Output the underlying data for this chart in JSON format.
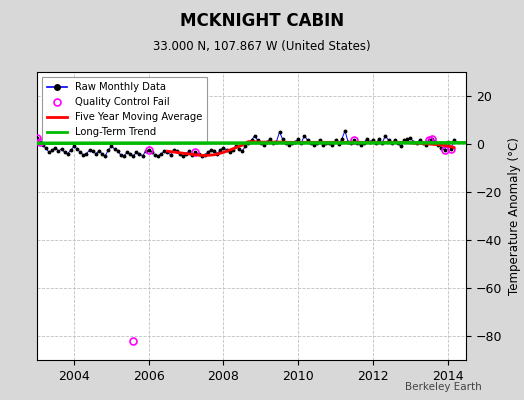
{
  "title": "MCKNIGHT CABIN",
  "subtitle": "33.000 N, 107.867 W (United States)",
  "ylabel": "Temperature Anomaly (°C)",
  "attribution": "Berkeley Earth",
  "xlim": [
    2003.0,
    2014.5
  ],
  "ylim": [
    -90,
    30
  ],
  "yticks": [
    -80,
    -60,
    -40,
    -20,
    0,
    20
  ],
  "xticks": [
    2004,
    2006,
    2008,
    2010,
    2012,
    2014
  ],
  "background_color": "#d8d8d8",
  "plot_bg_color": "#ffffff",
  "grid_color": "#c0c0c0",
  "raw_color": "#0000ff",
  "raw_marker_color": "#000000",
  "moving_avg_color": "#ff0000",
  "trend_color": "#00bb00",
  "qc_fail_color": "#ff00ff",
  "raw_monthly": [
    [
      2003.0,
      2.5
    ],
    [
      2003.083,
      1.0
    ],
    [
      2003.167,
      -0.5
    ],
    [
      2003.25,
      -1.8
    ],
    [
      2003.333,
      -3.5
    ],
    [
      2003.417,
      -2.5
    ],
    [
      2003.5,
      -1.5
    ],
    [
      2003.583,
      -3.0
    ],
    [
      2003.667,
      -2.0
    ],
    [
      2003.75,
      -3.5
    ],
    [
      2003.833,
      -4.0
    ],
    [
      2003.917,
      -2.5
    ],
    [
      2004.0,
      -1.0
    ],
    [
      2004.083,
      -2.0
    ],
    [
      2004.167,
      -3.5
    ],
    [
      2004.25,
      -4.5
    ],
    [
      2004.333,
      -4.0
    ],
    [
      2004.417,
      -2.5
    ],
    [
      2004.5,
      -3.0
    ],
    [
      2004.583,
      -4.0
    ],
    [
      2004.667,
      -3.0
    ],
    [
      2004.75,
      -4.0
    ],
    [
      2004.833,
      -5.0
    ],
    [
      2004.917,
      -2.5
    ],
    [
      2005.0,
      -1.0
    ],
    [
      2005.083,
      -2.0
    ],
    [
      2005.167,
      -3.0
    ],
    [
      2005.25,
      -4.5
    ],
    [
      2005.333,
      -5.0
    ],
    [
      2005.417,
      -3.5
    ],
    [
      2005.5,
      -4.0
    ],
    [
      2005.583,
      -5.0
    ],
    [
      2005.667,
      -3.5
    ],
    [
      2005.75,
      -4.0
    ],
    [
      2005.833,
      -5.0
    ],
    [
      2005.917,
      -3.0
    ],
    [
      2006.0,
      -2.5
    ],
    [
      2006.083,
      -3.5
    ],
    [
      2006.167,
      -4.5
    ],
    [
      2006.25,
      -5.0
    ],
    [
      2006.333,
      -4.0
    ],
    [
      2006.417,
      -3.0
    ],
    [
      2006.5,
      -3.5
    ],
    [
      2006.583,
      -4.5
    ],
    [
      2006.667,
      -2.5
    ],
    [
      2006.75,
      -3.0
    ],
    [
      2006.833,
      -4.0
    ],
    [
      2006.917,
      -5.0
    ],
    [
      2007.0,
      -4.0
    ],
    [
      2007.083,
      -3.0
    ],
    [
      2007.167,
      -4.5
    ],
    [
      2007.25,
      -3.5
    ],
    [
      2007.333,
      -4.0
    ],
    [
      2007.417,
      -5.0
    ],
    [
      2007.5,
      -4.5
    ],
    [
      2007.583,
      -3.5
    ],
    [
      2007.667,
      -2.5
    ],
    [
      2007.75,
      -3.0
    ],
    [
      2007.833,
      -4.0
    ],
    [
      2007.917,
      -2.5
    ],
    [
      2008.0,
      -1.5
    ],
    [
      2008.083,
      -2.5
    ],
    [
      2008.167,
      -3.5
    ],
    [
      2008.25,
      -2.5
    ],
    [
      2008.333,
      -1.0
    ],
    [
      2008.417,
      -2.0
    ],
    [
      2008.5,
      -3.0
    ],
    [
      2008.583,
      -1.0
    ],
    [
      2008.667,
      0.5
    ],
    [
      2008.75,
      1.5
    ],
    [
      2008.833,
      3.5
    ],
    [
      2008.917,
      1.5
    ],
    [
      2009.0,
      0.5
    ],
    [
      2009.083,
      -0.5
    ],
    [
      2009.167,
      1.0
    ],
    [
      2009.25,
      2.0
    ],
    [
      2009.333,
      0.5
    ],
    [
      2009.417,
      1.0
    ],
    [
      2009.5,
      5.0
    ],
    [
      2009.583,
      2.0
    ],
    [
      2009.667,
      0.5
    ],
    [
      2009.75,
      -0.5
    ],
    [
      2009.833,
      0.5
    ],
    [
      2009.917,
      1.0
    ],
    [
      2010.0,
      2.0
    ],
    [
      2010.083,
      0.5
    ],
    [
      2010.167,
      3.5
    ],
    [
      2010.25,
      1.5
    ],
    [
      2010.333,
      0.5
    ],
    [
      2010.417,
      -0.5
    ],
    [
      2010.5,
      0.5
    ],
    [
      2010.583,
      1.5
    ],
    [
      2010.667,
      -0.5
    ],
    [
      2010.75,
      0.5
    ],
    [
      2010.833,
      0.5
    ],
    [
      2010.917,
      -0.5
    ],
    [
      2011.0,
      1.5
    ],
    [
      2011.083,
      0.0
    ],
    [
      2011.167,
      2.0
    ],
    [
      2011.25,
      5.5
    ],
    [
      2011.333,
      1.0
    ],
    [
      2011.417,
      0.5
    ],
    [
      2011.5,
      1.5
    ],
    [
      2011.583,
      0.5
    ],
    [
      2011.667,
      -0.5
    ],
    [
      2011.75,
      0.5
    ],
    [
      2011.833,
      2.0
    ],
    [
      2011.917,
      1.0
    ],
    [
      2012.0,
      1.5
    ],
    [
      2012.083,
      0.5
    ],
    [
      2012.167,
      2.0
    ],
    [
      2012.25,
      0.5
    ],
    [
      2012.333,
      3.5
    ],
    [
      2012.417,
      1.5
    ],
    [
      2012.5,
      0.5
    ],
    [
      2012.583,
      1.5
    ],
    [
      2012.667,
      0.5
    ],
    [
      2012.75,
      -1.0
    ],
    [
      2012.833,
      1.5
    ],
    [
      2012.917,
      2.0
    ],
    [
      2013.0,
      2.5
    ],
    [
      2013.083,
      1.0
    ],
    [
      2013.167,
      0.5
    ],
    [
      2013.25,
      1.5
    ],
    [
      2013.333,
      0.5
    ],
    [
      2013.417,
      -0.5
    ],
    [
      2013.5,
      1.5
    ],
    [
      2013.583,
      2.0
    ],
    [
      2013.667,
      1.0
    ],
    [
      2013.75,
      -0.5
    ],
    [
      2013.833,
      -1.5
    ],
    [
      2013.917,
      -2.5
    ],
    [
      2014.0,
      1.0
    ],
    [
      2014.083,
      -2.0
    ],
    [
      2014.167,
      1.5
    ]
  ],
  "qc_fail_points": [
    [
      2003.0,
      2.5
    ],
    [
      2003.083,
      1.0
    ],
    [
      2006.0,
      -2.5
    ],
    [
      2007.25,
      -3.5
    ],
    [
      2011.5,
      1.5
    ],
    [
      2013.5,
      1.5
    ],
    [
      2013.583,
      2.0
    ],
    [
      2013.917,
      -2.5
    ],
    [
      2014.083,
      -2.0
    ]
  ],
  "qc_fail_outlier": [
    [
      2005.583,
      -82.0
    ]
  ],
  "moving_avg": [
    [
      2006.5,
      -3.0
    ],
    [
      2006.75,
      -3.5
    ],
    [
      2007.0,
      -4.0
    ],
    [
      2007.25,
      -4.5
    ],
    [
      2007.5,
      -4.8
    ],
    [
      2007.75,
      -4.5
    ],
    [
      2008.0,
      -3.5
    ],
    [
      2008.25,
      -2.0
    ],
    [
      2008.5,
      -0.5
    ],
    [
      2008.583,
      0.3
    ],
    [
      2008.667,
      1.0
    ],
    [
      2008.75,
      1.0
    ],
    [
      2009.0,
      0.8
    ],
    [
      2009.25,
      0.8
    ],
    [
      2009.5,
      0.8
    ],
    [
      2009.75,
      0.7
    ],
    [
      2010.0,
      0.7
    ],
    [
      2010.25,
      0.7
    ],
    [
      2010.5,
      0.7
    ],
    [
      2010.75,
      0.7
    ],
    [
      2011.0,
      0.7
    ],
    [
      2011.25,
      0.7
    ],
    [
      2011.5,
      0.7
    ],
    [
      2011.75,
      0.7
    ],
    [
      2012.0,
      0.7
    ],
    [
      2012.25,
      0.7
    ],
    [
      2012.5,
      0.7
    ],
    [
      2012.75,
      0.7
    ],
    [
      2013.0,
      0.5
    ],
    [
      2013.25,
      0.3
    ],
    [
      2013.5,
      0.0
    ],
    [
      2013.75,
      -0.3
    ],
    [
      2014.0,
      -0.8
    ],
    [
      2014.167,
      -1.5
    ]
  ],
  "trend_line": [
    [
      2003.0,
      0.3
    ],
    [
      2014.5,
      0.5
    ]
  ]
}
